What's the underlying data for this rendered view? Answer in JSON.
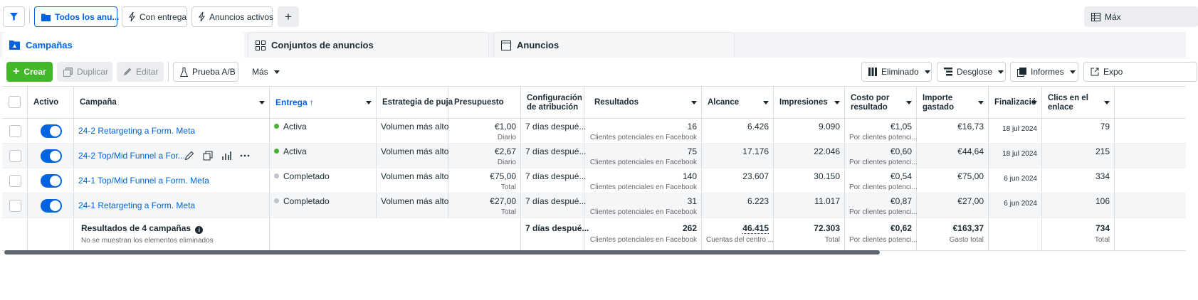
{
  "filters": {
    "filter_label": "",
    "tab1": "Todos los anu...",
    "tab2": "Con entrega",
    "tab3": "Anuncios activos",
    "add_label": "+",
    "right_label": "Máx"
  },
  "levels": {
    "campaigns": "Campañas",
    "adsets": "Conjuntos de anuncios",
    "ads": "Anuncios"
  },
  "toolbar": {
    "create": "Crear",
    "duplicate": "Duplicar",
    "edit": "Editar",
    "ab_test": "Prueba A/B",
    "more": "Más",
    "deleted": "Eliminado",
    "breakdown": "Desglose",
    "reports": "Informes",
    "export": "Expo"
  },
  "columns": {
    "active": "Activo",
    "campaign": "Campaña",
    "delivery": "Entrega",
    "bid_strategy": "Estrategia de puja",
    "budget": "Presupuesto",
    "attribution": "Configuración de atribución",
    "results": "Resultados",
    "reach": "Alcance",
    "impressions": "Impresiones",
    "cost_per_result": "Costo por resultado",
    "amount_spent": "Importe gastado",
    "ends": "Finalizació",
    "link_clicks": "Clics en el enlace"
  },
  "rows": [
    {
      "name": "24-2 Retargeting a Form. Meta",
      "delivery": "Activa",
      "delivery_color": "#42b72a",
      "bid": "Volumen más alto",
      "budget": "€1,00",
      "budget_type": "Diario",
      "attribution": "7 días despué...",
      "results": "16",
      "results_type": "Clientes potenciales en Facebook",
      "reach": "6.426",
      "impressions": "9.090",
      "cpr": "€1,05",
      "cpr_type": "Por clientes potenci...",
      "spent": "€16,73",
      "ends": "18 jul 2024",
      "clicks": "79"
    },
    {
      "name": "24-2 Top/Mid Funnel a For...",
      "delivery": "Activa",
      "delivery_color": "#42b72a",
      "bid": "Volumen más alto",
      "budget": "€2,67",
      "budget_type": "Diario",
      "attribution": "7 días despué...",
      "results": "75",
      "results_type": "Clientes potenciales en Facebook",
      "reach": "17.176",
      "impressions": "22.046",
      "cpr": "€0,60",
      "cpr_type": "Por clientes potenci...",
      "spent": "€44,64",
      "ends": "18 jul 2024",
      "clicks": "215"
    },
    {
      "name": "24-1 Top/Mid Funnel a Form. Meta",
      "delivery": "Completado",
      "delivery_color": "#bec3c9",
      "bid": "Volumen más alto",
      "budget": "€75,00",
      "budget_type": "Total",
      "attribution": "7 días despué...",
      "results": "140",
      "results_type": "Clientes potenciales en Facebook",
      "reach": "23.607",
      "impressions": "30.150",
      "cpr": "€0,54",
      "cpr_type": "Por clientes potenci...",
      "spent": "€75,00",
      "ends": "6 jun 2024",
      "clicks": "334"
    },
    {
      "name": "24-1 Retargeting a Form. Meta",
      "delivery": "Completado",
      "delivery_color": "#bec3c9",
      "bid": "Volumen más alto",
      "budget": "€27,00",
      "budget_type": "Total",
      "attribution": "7 días despué...",
      "results": "31",
      "results_type": "Clientes potenciales en Facebook",
      "reach": "6.223",
      "impressions": "11.017",
      "cpr": "€0,87",
      "cpr_type": "Por clientes potenci...",
      "spent": "€27,00",
      "ends": "6 jun 2024",
      "clicks": "106"
    }
  ],
  "totals": {
    "label": "Resultados de 4 campañas",
    "note": "No se muestran los elementos eliminados",
    "attribution": "7 días despué...",
    "results": "262",
    "results_type": "Clientes potenciales en Facebook",
    "reach": "46.415",
    "reach_type": "Cuentas del centro ...",
    "impressions": "72.303",
    "impressions_type": "Total",
    "cpr": "€0,62",
    "cpr_type": "Por clientes potenci...",
    "spent": "€163,37",
    "spent_type": "Gasto total",
    "clicks": "734",
    "clicks_type": "Total"
  }
}
